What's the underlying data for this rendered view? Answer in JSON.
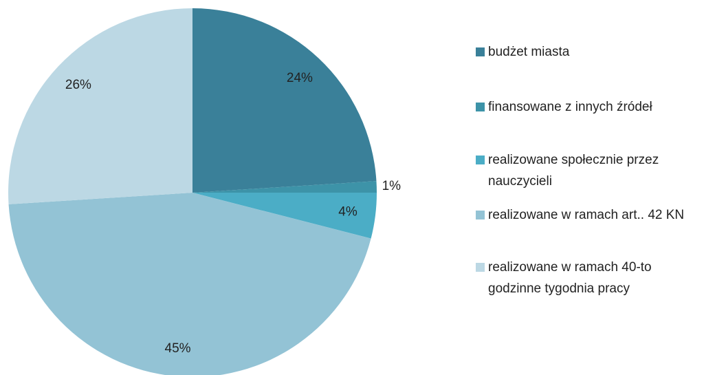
{
  "chart_data": {
    "type": "pie",
    "categories": [
      "budżet miasta",
      "finansowane z innych źródeł",
      "realizowane społecznie przez nauczycieli",
      "realizowane w ramach art.. 42 KN",
      "realizowane w ramach 40-to godzinne tygodnia pracy"
    ],
    "values": [
      24,
      1,
      4,
      45,
      26
    ],
    "value_labels": [
      "24%",
      "1%",
      "4%",
      "45%",
      "26%"
    ],
    "colors": [
      "#3a8099",
      "#3d93a8",
      "#4badc6",
      "#93c3d5",
      "#bcd8e4"
    ],
    "legend": "right"
  }
}
